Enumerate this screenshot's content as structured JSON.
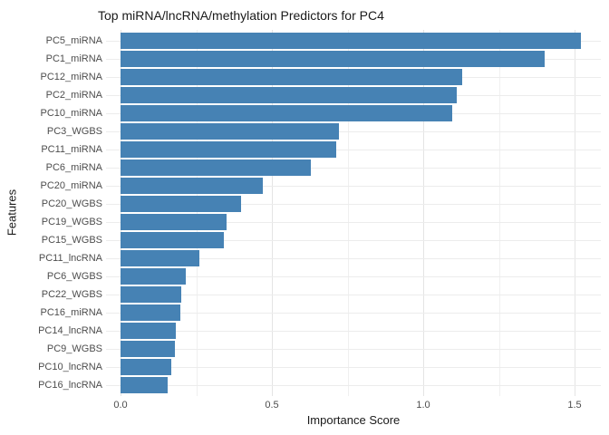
{
  "chart_data": {
    "type": "bar",
    "orientation": "horizontal",
    "title": "Top miRNA/lncRNA/methylation Predictors for PC4",
    "xlabel": "Importance Score",
    "ylabel": "Features",
    "categories": [
      "PC5_miRNA",
      "PC1_miRNA",
      "PC12_miRNA",
      "PC2_miRNA",
      "PC10_miRNA",
      "PC3_WGBS",
      "PC11_miRNA",
      "PC6_miRNA",
      "PC20_miRNA",
      "PC20_WGBS",
      "PC19_WGBS",
      "PC15_WGBS",
      "PC11_lncRNA",
      "PC6_WGBS",
      "PC22_WGBS",
      "PC16_miRNA",
      "PC14_lncRNA",
      "PC9_WGBS",
      "PC10_lncRNA",
      "PC16_lncRNA"
    ],
    "values": [
      1.52,
      1.4,
      1.13,
      1.11,
      1.095,
      0.722,
      0.712,
      0.628,
      0.47,
      0.398,
      0.35,
      0.342,
      0.26,
      0.215,
      0.201,
      0.198,
      0.183,
      0.18,
      0.169,
      0.156
    ],
    "xlim": [
      0,
      1.6
    ],
    "x_major_ticks": [
      0.0,
      0.5,
      1.0,
      1.5
    ],
    "x_tick_labels": [
      "0.0",
      "0.5",
      "1.0",
      "1.5"
    ],
    "x_minor_ticks": [
      0.25,
      0.75,
      1.25
    ],
    "grid": "on",
    "legend": "none",
    "bar_color": "#4682b4",
    "background_color": "#ffffff",
    "grid_major_color": "#e4e4e4",
    "grid_minor_color": "#f0f0f0"
  }
}
